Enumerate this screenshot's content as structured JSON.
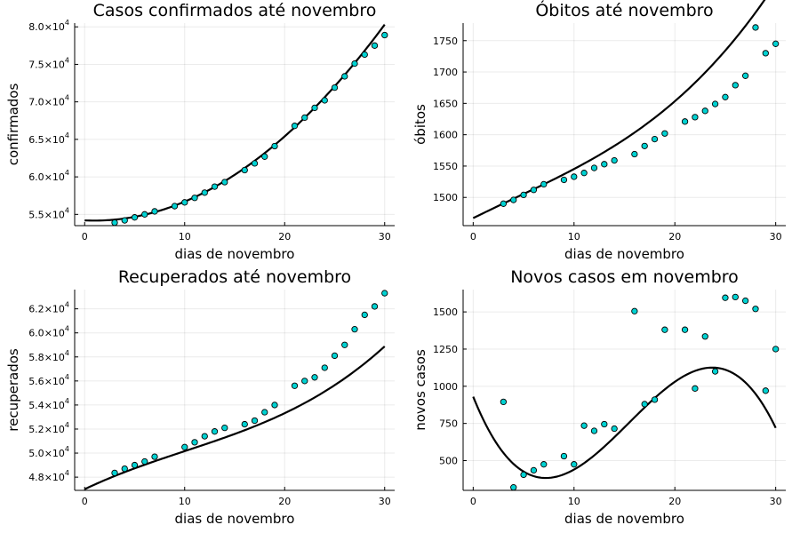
{
  "chart_data": [
    {
      "type": "scatter",
      "title": "Casos confirmados até novembro",
      "xlabel": "dias de novembro",
      "ylabel": "confirmados",
      "xlim": [
        -1,
        31
      ],
      "ylim": [
        53500,
        80500
      ],
      "xticks": [
        0,
        10,
        20,
        30
      ],
      "xtick_labels": [
        "0",
        "10",
        "20",
        "30"
      ],
      "yticks": [
        55000,
        60000,
        65000,
        70000,
        75000,
        80000
      ],
      "ytick_mantissas": [
        "5.5",
        "6.0",
        "6.5",
        "7.0",
        "7.5",
        "8.0"
      ],
      "ytick_base": "×10",
      "ytick_exponent": "4",
      "grid": true,
      "legend": "none",
      "series": [
        {
          "kind": "points",
          "color": "#00d2d2",
          "x": [
            3,
            4,
            5,
            6,
            7,
            9,
            10,
            11,
            12,
            13,
            14,
            16,
            17,
            18,
            19,
            21,
            22,
            23,
            24,
            25,
            26,
            27,
            28,
            29,
            30
          ],
          "y": [
            53900,
            54200,
            54600,
            55000,
            55400,
            56100,
            56600,
            57200,
            57900,
            58700,
            59300,
            60900,
            61800,
            62700,
            64100,
            66800,
            67900,
            69200,
            70200,
            71900,
            73400,
            75100,
            76300,
            77500,
            78900
          ]
        },
        {
          "kind": "line",
          "color": "#000000",
          "coef": [
            54200,
            -60,
            31
          ]
        }
      ]
    },
    {
      "type": "scatter",
      "title": "Óbitos até novembro",
      "xlabel": "dias de novembro",
      "ylabel": "óbitos",
      "xlim": [
        -1,
        31
      ],
      "ylim": [
        1455,
        1778
      ],
      "xticks": [
        0,
        10,
        20,
        30
      ],
      "xtick_labels": [
        "0",
        "10",
        "20",
        "30"
      ],
      "yticks": [
        1500,
        1550,
        1600,
        1650,
        1700,
        1750
      ],
      "ytick_labels": [
        "1500",
        "1550",
        "1600",
        "1650",
        "1700",
        "1750"
      ],
      "grid": true,
      "legend": "none",
      "series": [
        {
          "kind": "points",
          "color": "#00d2d2",
          "x": [
            3,
            4,
            5,
            6,
            7,
            9,
            10,
            11,
            12,
            13,
            14,
            16,
            17,
            18,
            19,
            21,
            22,
            23,
            24,
            25,
            26,
            27,
            28,
            29,
            30
          ],
          "y": [
            1490,
            1496,
            1504,
            1512,
            1521,
            1528,
            1533,
            1539,
            1547,
            1553,
            1559,
            1569,
            1582,
            1593,
            1602,
            1621,
            1628,
            1638,
            1649,
            1660,
            1679,
            1694,
            1771,
            1730,
            1745
          ]
        },
        {
          "kind": "line",
          "color": "#000000",
          "coef": [
            1467,
            8.0,
            -0.1,
            0.0083
          ]
        }
      ]
    },
    {
      "type": "scatter",
      "title": "Recuperados até novembro",
      "xlabel": "dias de novembro",
      "ylabel": "recuperados",
      "xlim": [
        -1,
        31
      ],
      "ylim": [
        46900,
        63600
      ],
      "xticks": [
        0,
        10,
        20,
        30
      ],
      "xtick_labels": [
        "0",
        "10",
        "20",
        "30"
      ],
      "yticks": [
        48000,
        50000,
        52000,
        54000,
        56000,
        58000,
        60000,
        62000
      ],
      "ytick_mantissas": [
        "4.8",
        "5.0",
        "5.2",
        "5.4",
        "5.6",
        "5.8",
        "6.0",
        "6.2"
      ],
      "ytick_base": "×10",
      "ytick_exponent": "4",
      "grid": true,
      "legend": "none",
      "series": [
        {
          "kind": "points",
          "color": "#00d2d2",
          "x": [
            3,
            4,
            5,
            6,
            7,
            10,
            11,
            12,
            13,
            14,
            16,
            17,
            18,
            19,
            21,
            22,
            23,
            24,
            25,
            26,
            27,
            28,
            29,
            30
          ],
          "y": [
            48350,
            48700,
            49000,
            49300,
            49700,
            50500,
            50900,
            51400,
            51800,
            52100,
            52400,
            52700,
            53400,
            54000,
            55600,
            56000,
            56300,
            57100,
            58100,
            59000,
            60300,
            61500,
            62200,
            63300
          ]
        },
        {
          "kind": "line",
          "color": "#000000",
          "coef": [
            47000,
            396,
            -12,
            0.4
          ]
        }
      ]
    },
    {
      "type": "scatter",
      "title": "Novos casos em novembro",
      "xlabel": "dias de novembro",
      "ylabel": "novos casos",
      "xlim": [
        -1,
        31
      ],
      "ylim": [
        300,
        1650
      ],
      "xticks": [
        0,
        10,
        20,
        30
      ],
      "xtick_labels": [
        "0",
        "10",
        "20",
        "30"
      ],
      "yticks": [
        500,
        750,
        1000,
        1250,
        1500
      ],
      "ytick_labels": [
        "500",
        "750",
        "1000",
        "1250",
        "1500"
      ],
      "grid": true,
      "legend": "none",
      "series": [
        {
          "kind": "points",
          "color": "#00d2d2",
          "x": [
            3,
            4,
            5,
            6,
            7,
            9,
            10,
            11,
            12,
            13,
            14,
            16,
            17,
            18,
            19,
            21,
            22,
            23,
            24,
            25,
            26,
            27,
            28,
            29,
            30
          ],
          "y": [
            895,
            320,
            405,
            435,
            475,
            530,
            475,
            735,
            700,
            745,
            715,
            1505,
            880,
            910,
            1380,
            1380,
            985,
            1335,
            1100,
            1595,
            1600,
            1575,
            1520,
            970,
            1250
          ]
        },
        {
          "kind": "line",
          "color": "#000000",
          "coef": [
            930,
            -169,
            15.3,
            -0.33
          ]
        }
      ]
    }
  ]
}
